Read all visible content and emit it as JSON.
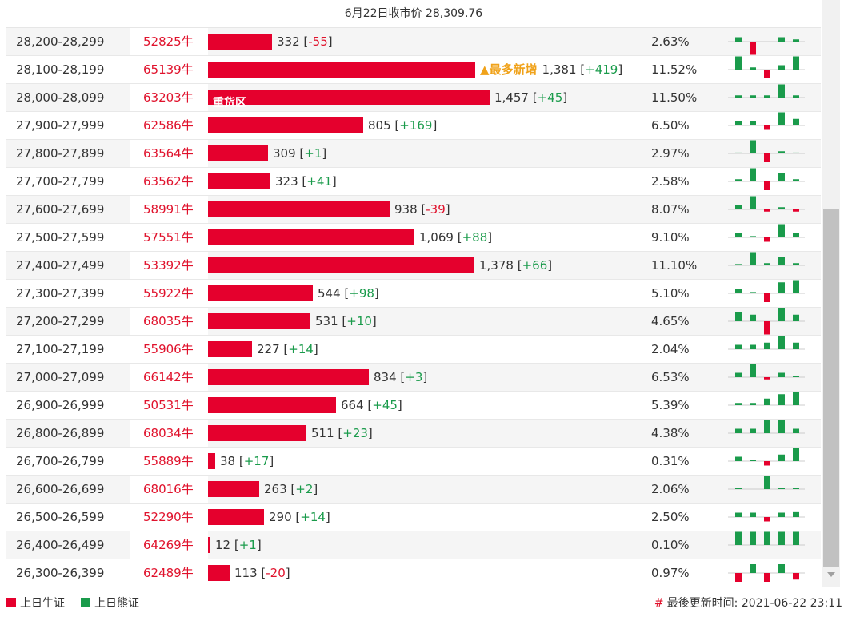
{
  "header": {
    "title": "6月22日收市价 28,309.76"
  },
  "colors": {
    "bull": "#e5002d",
    "bear": "#1a9b4b",
    "highlight": "#f0a21a"
  },
  "rows": [
    {
      "range": "28,200-28,299",
      "code": "52825牛",
      "count": 332,
      "count_text": "332",
      "change": "-55",
      "pct": "2.63%",
      "label": "",
      "tag": "",
      "spark": [
        1,
        -3,
        0,
        1,
        0.5,
        -0.5
      ]
    },
    {
      "range": "28,100-28,199",
      "code": "65139牛",
      "count": 1381,
      "count_text": "1,381",
      "change": "+419",
      "pct": "11.52%",
      "label": "",
      "tag": "▲最多新增",
      "spark": [
        3,
        0.5,
        -2,
        1,
        3,
        0
      ]
    },
    {
      "range": "28,000-28,099",
      "code": "63203牛",
      "count": 1457,
      "count_text": "1,457",
      "change": "+45",
      "pct": "11.50%",
      "label": "重货区",
      "tag": "",
      "spark": [
        0.5,
        0.5,
        0.5,
        3,
        0.5,
        0
      ]
    },
    {
      "range": "27,900-27,999",
      "code": "62586牛",
      "count": 805,
      "count_text": "805",
      "change": "+169",
      "pct": "6.50%",
      "label": "",
      "tag": "",
      "spark": [
        1,
        1,
        -1,
        3,
        1.5,
        0
      ]
    },
    {
      "range": "27,800-27,899",
      "code": "63564牛",
      "count": 309,
      "count_text": "309",
      "change": "+1",
      "pct": "2.97%",
      "label": "",
      "tag": "",
      "spark": [
        0.2,
        3,
        -2,
        0.5,
        0.2,
        0
      ]
    },
    {
      "range": "27,700-27,799",
      "code": "63562牛",
      "count": 323,
      "count_text": "323",
      "change": "+41",
      "pct": "2.58%",
      "label": "",
      "tag": "",
      "spark": [
        0.5,
        3,
        -2,
        2,
        0.5,
        0
      ]
    },
    {
      "range": "27,600-27,699",
      "code": "58991牛",
      "count": 938,
      "count_text": "938",
      "change": "-39",
      "pct": "8.07%",
      "label": "",
      "tag": "",
      "spark": [
        1,
        3,
        -0.5,
        0.5,
        -0.5,
        0
      ]
    },
    {
      "range": "27,500-27,599",
      "code": "57551牛",
      "count": 1069,
      "count_text": "1,069",
      "change": "+88",
      "pct": "9.10%",
      "label": "",
      "tag": "",
      "spark": [
        1,
        0.3,
        -1,
        3,
        1,
        0
      ]
    },
    {
      "range": "27,400-27,499",
      "code": "53392牛",
      "count": 1378,
      "count_text": "1,378",
      "change": "+66",
      "pct": "11.10%",
      "label": "",
      "tag": "",
      "spark": [
        0.3,
        3,
        0.5,
        2,
        0.5,
        0
      ]
    },
    {
      "range": "27,300-27,399",
      "code": "55922牛",
      "count": 544,
      "count_text": "544",
      "change": "+98",
      "pct": "5.10%",
      "label": "",
      "tag": "",
      "spark": [
        1,
        0.3,
        -2,
        2.5,
        3,
        0
      ]
    },
    {
      "range": "27,200-27,299",
      "code": "68035牛",
      "count": 531,
      "count_text": "531",
      "change": "+10",
      "pct": "4.65%",
      "label": "",
      "tag": "",
      "spark": [
        2,
        1.5,
        -3,
        3,
        1.5,
        0
      ]
    },
    {
      "range": "27,100-27,199",
      "code": "55906牛",
      "count": 227,
      "count_text": "227",
      "change": "+14",
      "pct": "2.04%",
      "label": "",
      "tag": "",
      "spark": [
        1,
        1,
        1.5,
        3,
        1.5,
        0
      ]
    },
    {
      "range": "27,000-27,099",
      "code": "66142牛",
      "count": 834,
      "count_text": "834",
      "change": "+3",
      "pct": "6.53%",
      "label": "",
      "tag": "",
      "spark": [
        1,
        3,
        -0.5,
        1,
        0.2,
        0
      ]
    },
    {
      "range": "26,900-26,999",
      "code": "50531牛",
      "count": 664,
      "count_text": "664",
      "change": "+45",
      "pct": "5.39%",
      "label": "",
      "tag": "",
      "spark": [
        0.5,
        0.5,
        1.5,
        2.5,
        3,
        0
      ]
    },
    {
      "range": "26,800-26,899",
      "code": "68034牛",
      "count": 511,
      "count_text": "511",
      "change": "+23",
      "pct": "4.38%",
      "label": "",
      "tag": "",
      "spark": [
        1,
        1,
        3,
        3,
        1,
        0
      ]
    },
    {
      "range": "26,700-26,799",
      "code": "55889牛",
      "count": 38,
      "count_text": "38",
      "change": "+17",
      "pct": "0.31%",
      "label": "",
      "tag": "",
      "spark": [
        1,
        0.3,
        -1,
        1.5,
        3,
        0
      ]
    },
    {
      "range": "26,600-26,699",
      "code": "68016牛",
      "count": 263,
      "count_text": "263",
      "change": "+2",
      "pct": "2.06%",
      "label": "",
      "tag": "",
      "spark": [
        0.2,
        0,
        3,
        0.2,
        0.2,
        0
      ]
    },
    {
      "range": "26,500-26,599",
      "code": "52290牛",
      "count": 290,
      "count_text": "290",
      "change": "+14",
      "pct": "2.50%",
      "label": "",
      "tag": "",
      "spark": [
        1,
        1,
        -1,
        1,
        1.3,
        0
      ]
    },
    {
      "range": "26,400-26,499",
      "code": "64269牛",
      "count": 12,
      "count_text": "12",
      "change": "+1",
      "pct": "0.10%",
      "label": "",
      "tag": "",
      "spark": [
        3,
        3,
        3,
        3,
        3,
        0
      ]
    },
    {
      "range": "26,300-26,399",
      "code": "62489牛",
      "count": 113,
      "count_text": "113",
      "change": "-20",
      "pct": "0.97%",
      "label": "",
      "tag": "",
      "spark": [
        -2,
        2,
        -2,
        2,
        -1.5,
        0
      ]
    }
  ],
  "footer": {
    "legend_bull": "上日牛证",
    "legend_bear": "上日熊证",
    "update_hash": "#",
    "update_label": "最後更新时间:",
    "update_time": "2021-06-22 23:11"
  }
}
